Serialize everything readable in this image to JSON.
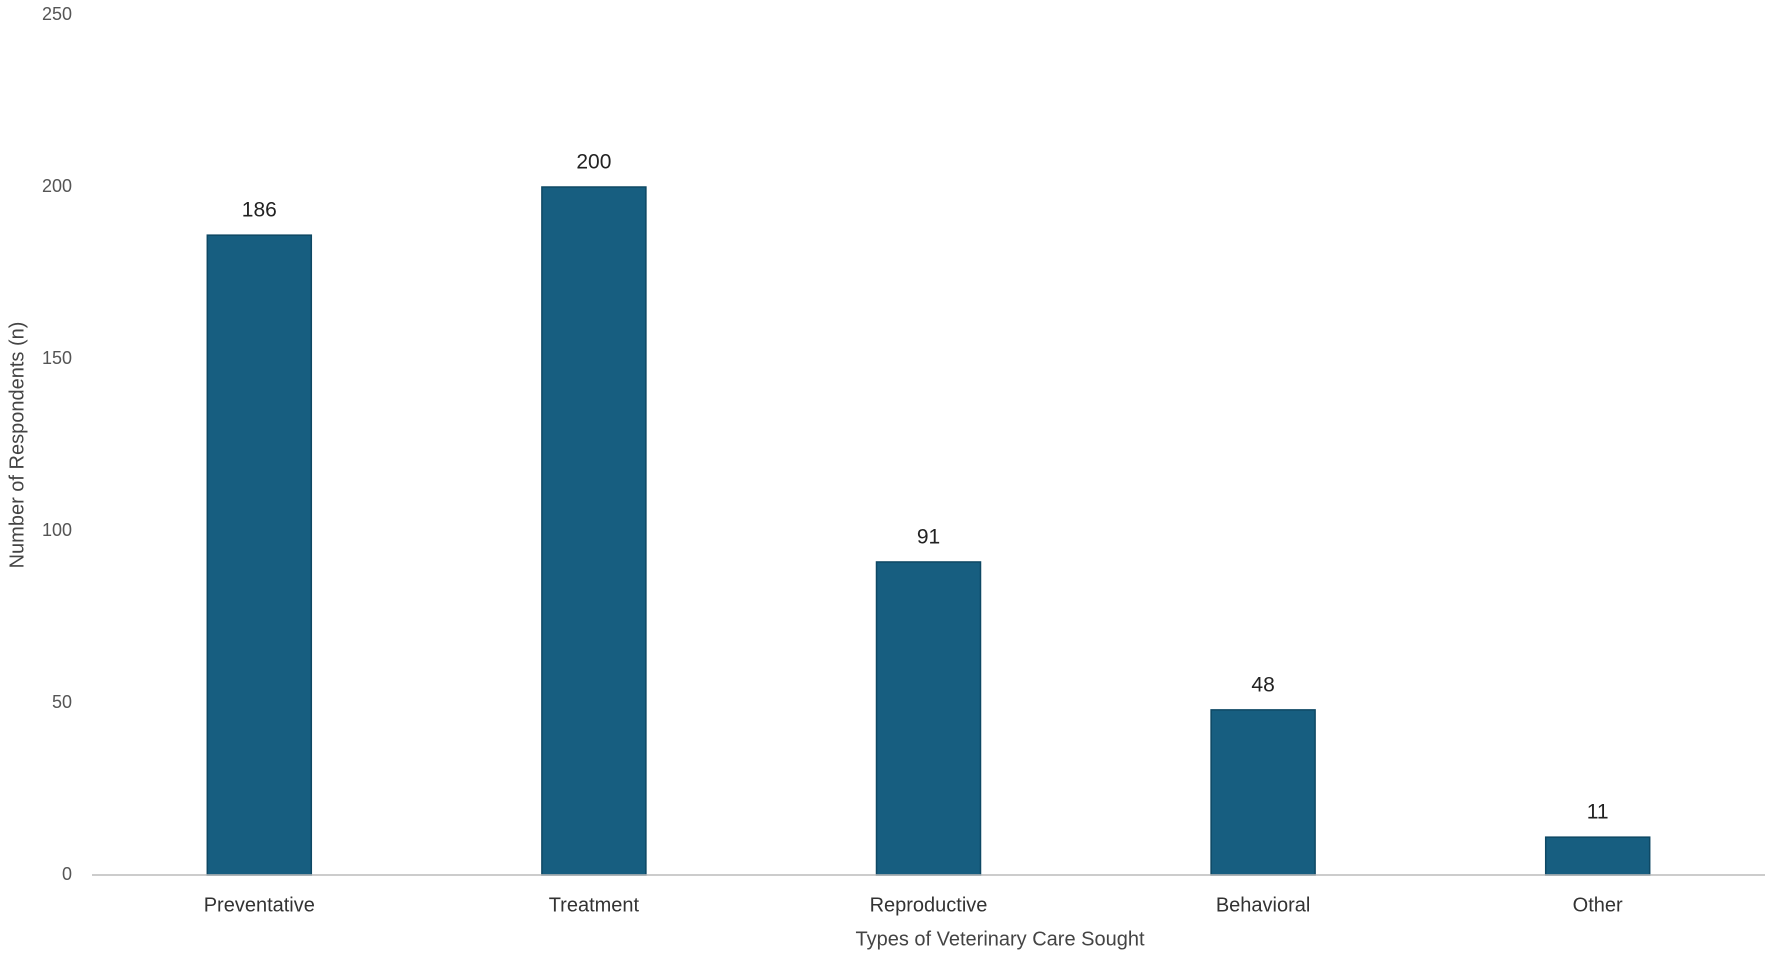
{
  "chart_data": {
    "type": "bar",
    "x_label": "Types of Veterinary Care Sought",
    "y_label": "Number of Respondents (n)",
    "categories": [
      "Preventative",
      "Treatment",
      "Reproductive",
      "Behavioral",
      "Other"
    ],
    "values": [
      186,
      200,
      91,
      48,
      11
    ],
    "color": "#175e80",
    "ylim": [
      0,
      250
    ],
    "yticks": [
      0,
      50,
      100,
      150,
      200,
      250
    ],
    "grid": false,
    "data_labels": true
  }
}
